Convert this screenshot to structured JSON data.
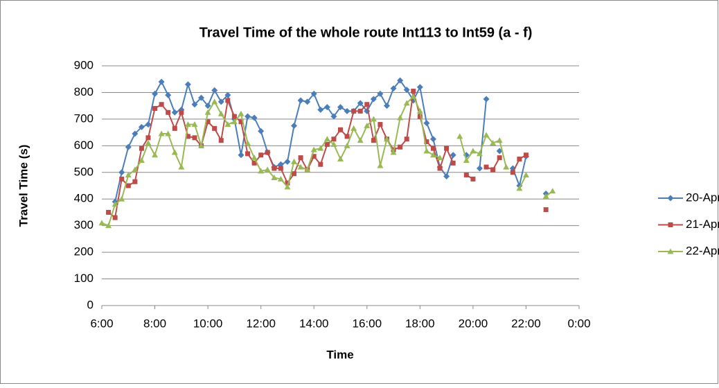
{
  "chart_data": {
    "type": "line",
    "title": "Travel Time of the whole route Int113 to Int59 (a - f)",
    "x_label": "Time",
    "y_label": "Travel Time (s)",
    "xlim": [
      6,
      24
    ],
    "xticks": [
      {
        "value": 6,
        "label": "6:00"
      },
      {
        "value": 8,
        "label": "8:00"
      },
      {
        "value": 10,
        "label": "10:00"
      },
      {
        "value": 12,
        "label": "12:00"
      },
      {
        "value": 14,
        "label": "14:00"
      },
      {
        "value": 16,
        "label": "16:00"
      },
      {
        "value": 18,
        "label": "18:00"
      },
      {
        "value": 20,
        "label": "20:00"
      },
      {
        "value": 22,
        "label": "22:00"
      },
      {
        "value": 24,
        "label": "0:00"
      }
    ],
    "ylim": [
      0,
      900
    ],
    "yticks": [
      0,
      100,
      200,
      300,
      400,
      500,
      600,
      700,
      800,
      900
    ],
    "grid": true,
    "legend": "right",
    "x": [
      6,
      6.25,
      6.5,
      6.75,
      7,
      7.25,
      7.5,
      7.75,
      8,
      8.25,
      8.5,
      8.75,
      9,
      9.25,
      9.5,
      9.75,
      10,
      10.25,
      10.5,
      10.75,
      11,
      11.25,
      11.5,
      11.75,
      12,
      12.25,
      12.5,
      12.75,
      13,
      13.25,
      13.5,
      13.75,
      14,
      14.25,
      14.5,
      14.75,
      15,
      15.25,
      15.5,
      15.75,
      16,
      16.25,
      16.5,
      16.75,
      17,
      17.25,
      17.5,
      17.75,
      18,
      18.25,
      18.5,
      18.75,
      19,
      19.25,
      19.5,
      19.75,
      20,
      20.25,
      20.5,
      20.75,
      21,
      21.25,
      21.5,
      21.75,
      22,
      22.25,
      22.5,
      22.75,
      23
    ],
    "series": [
      {
        "name": "20-Apr",
        "color": "#4a7ebb",
        "marker": "diamond",
        "values": [
          null,
          null,
          390,
          500,
          595,
          645,
          670,
          680,
          795,
          840,
          790,
          725,
          735,
          830,
          755,
          780,
          750,
          808,
          765,
          790,
          700,
          565,
          710,
          705,
          655,
          575,
          520,
          530,
          540,
          675,
          770,
          765,
          795,
          735,
          745,
          710,
          745,
          730,
          730,
          760,
          730,
          775,
          795,
          750,
          815,
          845,
          810,
          770,
          820,
          685,
          625,
          520,
          485,
          565,
          null,
          565,
          null,
          515,
          775,
          null,
          580,
          null,
          515,
          450,
          560,
          null,
          null,
          420,
          null
        ]
      },
      {
        "name": "21-Apr",
        "color": "#be4b48",
        "marker": "square",
        "values": [
          null,
          350,
          330,
          475,
          450,
          465,
          590,
          630,
          740,
          755,
          725,
          665,
          725,
          635,
          630,
          600,
          690,
          665,
          620,
          770,
          710,
          690,
          570,
          535,
          565,
          575,
          515,
          515,
          460,
          495,
          555,
          510,
          560,
          530,
          605,
          625,
          660,
          635,
          730,
          730,
          755,
          620,
          680,
          625,
          585,
          595,
          625,
          805,
          710,
          615,
          590,
          515,
          590,
          535,
          null,
          490,
          475,
          null,
          520,
          510,
          555,
          null,
          500,
          550,
          565,
          null,
          null,
          360,
          null
        ]
      },
      {
        "name": "22-Apr",
        "color": "#98b954",
        "marker": "triangle",
        "values": [
          310,
          300,
          380,
          400,
          490,
          510,
          545,
          610,
          565,
          645,
          645,
          575,
          520,
          680,
          680,
          600,
          725,
          765,
          720,
          680,
          690,
          720,
          610,
          555,
          505,
          510,
          480,
          475,
          445,
          540,
          520,
          510,
          585,
          590,
          625,
          605,
          550,
          600,
          665,
          620,
          675,
          700,
          525,
          625,
          575,
          705,
          760,
          785,
          730,
          580,
          565,
          555,
          null,
          null,
          635,
          545,
          580,
          570,
          640,
          610,
          620,
          520,
          null,
          440,
          490,
          null,
          null,
          410,
          430
        ]
      }
    ]
  }
}
